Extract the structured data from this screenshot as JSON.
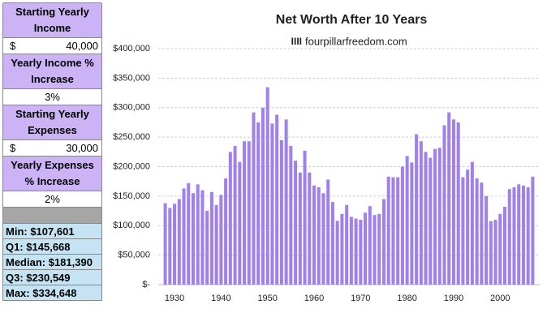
{
  "inputs": [
    {
      "label": "Starting Yearly Income",
      "currency": "$",
      "value": "40,000"
    },
    {
      "label": "Yearly Income % Increase",
      "value": "3%"
    },
    {
      "label": "Starting Yearly Expenses",
      "currency": "$",
      "value": "30,000"
    },
    {
      "label": "Yearly Expenses % Increase",
      "value": "2%"
    }
  ],
  "stats": [
    "Min: $107,601",
    "Q1: $145,668",
    "Median: $181,390",
    "Q3: $230,549",
    "Max: $334,648"
  ],
  "chart_data": {
    "type": "bar",
    "title": "Net Worth After 10 Years",
    "logo": "IIII",
    "subtitle": "fourpillarfreedom.com",
    "color": "#9f80ec",
    "grid": true,
    "x": [
      1928,
      1929,
      1930,
      1931,
      1932,
      1933,
      1934,
      1935,
      1936,
      1937,
      1938,
      1939,
      1940,
      1941,
      1942,
      1943,
      1944,
      1945,
      1946,
      1947,
      1948,
      1949,
      1950,
      1951,
      1952,
      1953,
      1954,
      1955,
      1956,
      1957,
      1958,
      1959,
      1960,
      1961,
      1962,
      1963,
      1964,
      1965,
      1966,
      1967,
      1968,
      1969,
      1970,
      1971,
      1972,
      1973,
      1974,
      1975,
      1976,
      1977,
      1978,
      1979,
      1980,
      1981,
      1982,
      1983,
      1984,
      1985,
      1986,
      1987,
      1988,
      1989,
      1990,
      1991,
      1992,
      1993,
      1994,
      1995,
      1996,
      1997,
      1998,
      1999,
      2000,
      2001,
      2002,
      2003,
      2004,
      2005,
      2006,
      2007
    ],
    "values": [
      138000,
      130000,
      137000,
      145000,
      163000,
      172000,
      155000,
      170000,
      160000,
      125000,
      157000,
      135000,
      152000,
      180000,
      225000,
      235000,
      208000,
      243000,
      243000,
      292000,
      275000,
      300000,
      334648,
      273000,
      288000,
      245000,
      280000,
      235000,
      210000,
      190000,
      227000,
      190000,
      168000,
      165000,
      155000,
      178000,
      140000,
      108000,
      120000,
      135000,
      115000,
      112000,
      110000,
      122000,
      133000,
      118000,
      120000,
      145000,
      183000,
      182000,
      182000,
      200000,
      218000,
      207000,
      255000,
      243000,
      225000,
      215000,
      230000,
      232000,
      270000,
      292000,
      280000,
      275000,
      182000,
      195000,
      208000,
      180000,
      173000,
      150000,
      107601,
      110000,
      120000,
      132000,
      162000,
      165000,
      170000,
      168000,
      165000,
      183000
    ],
    "xlim": [
      1926.5,
      2008.5
    ],
    "xticks": [
      1930,
      1940,
      1950,
      1960,
      1970,
      1980,
      1990,
      2000
    ],
    "ylim": [
      0,
      400000
    ],
    "yticks": [
      {
        "value": 0,
        "label": "$-"
      },
      {
        "value": 50000,
        "label": "$50,000"
      },
      {
        "value": 100000,
        "label": "$100,000"
      },
      {
        "value": 150000,
        "label": "$150,000"
      },
      {
        "value": 200000,
        "label": "$200,000"
      },
      {
        "value": 250000,
        "label": "$250,000"
      },
      {
        "value": 300000,
        "label": "$300,000"
      },
      {
        "value": 350000,
        "label": "$350,000"
      },
      {
        "value": 400000,
        "label": "$400,000"
      }
    ]
  }
}
